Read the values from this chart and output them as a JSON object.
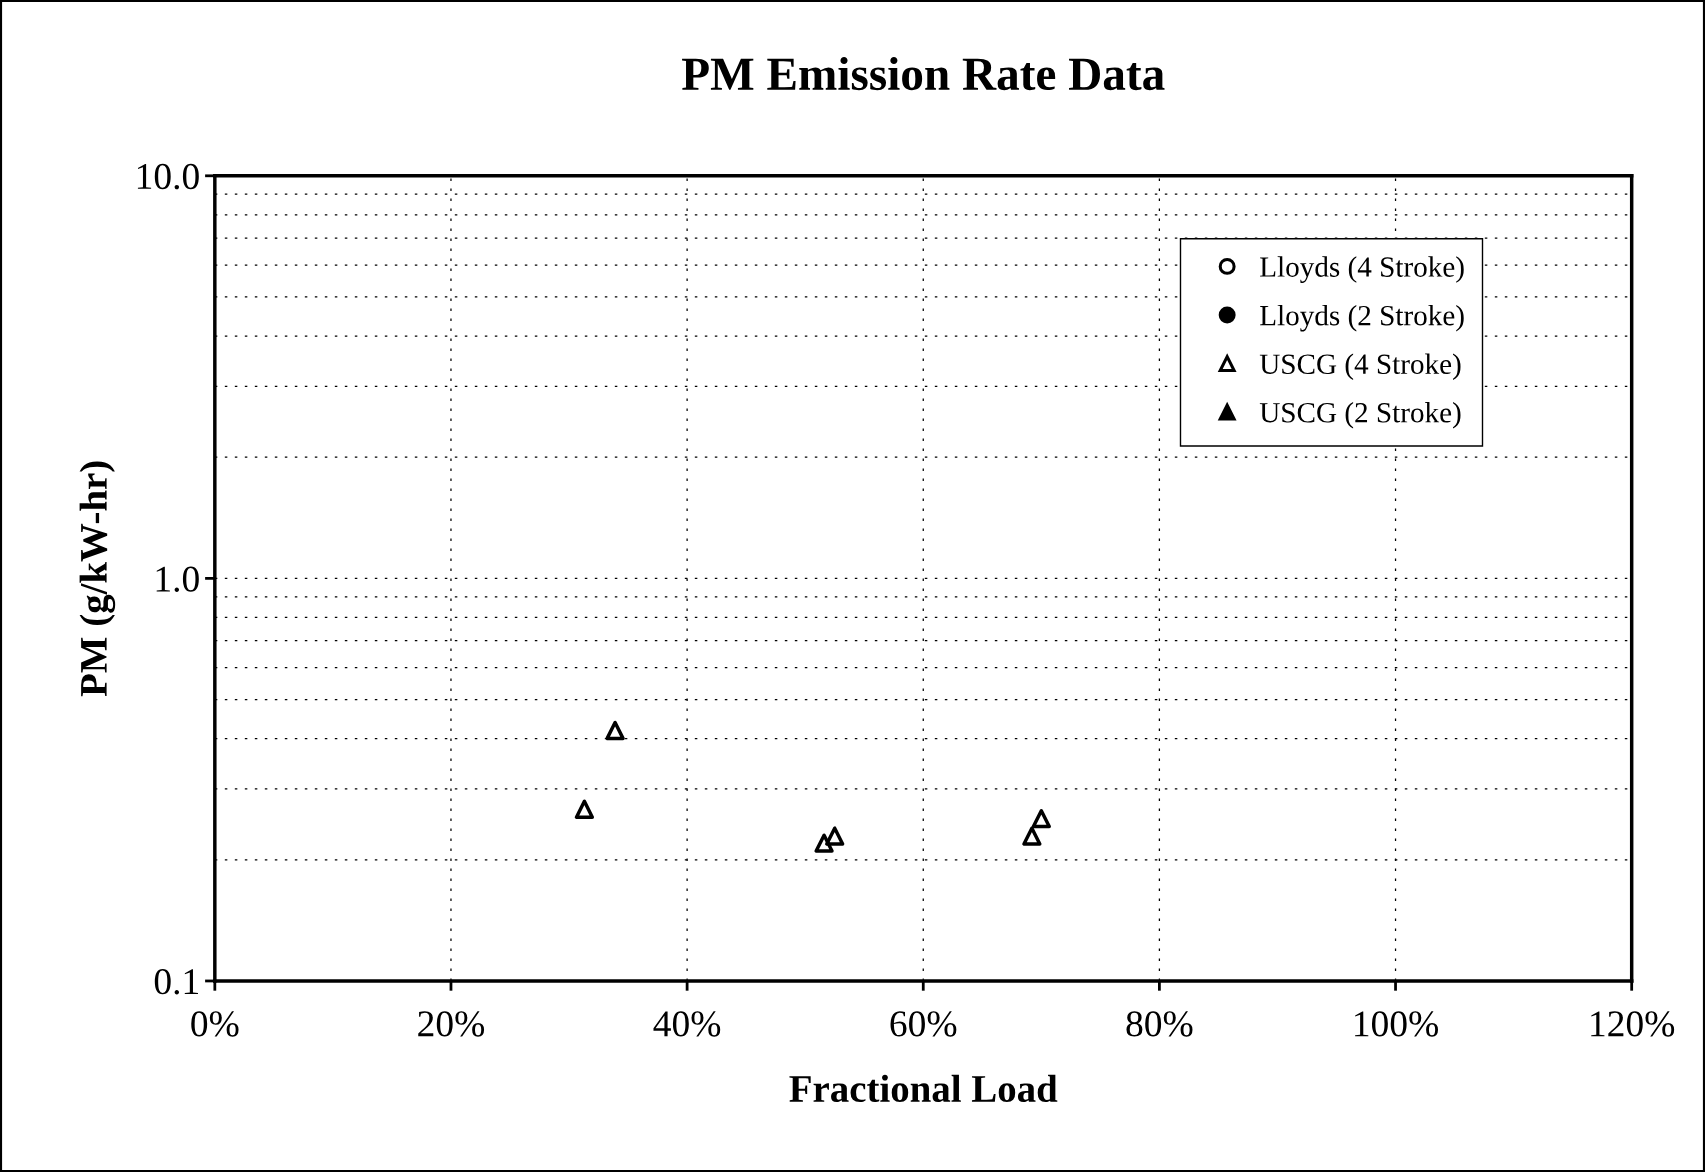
{
  "chart_data": {
    "type": "scatter",
    "title": "PM Emission Rate Data",
    "xlabel": "Fractional Load",
    "ylabel": "PM (g/kW-hr)",
    "log": "y",
    "grid": true,
    "legend": "top right",
    "xlim": [
      0,
      1.2
    ],
    "xticks": [
      {
        "value": 0,
        "label": "0%"
      },
      {
        "value": 0.2,
        "label": "20%"
      },
      {
        "value": 0.4,
        "label": "40%"
      },
      {
        "value": 0.6,
        "label": "60%"
      },
      {
        "value": 0.8,
        "label": "80%"
      },
      {
        "value": 1.0,
        "label": "100%"
      },
      {
        "value": 1.2,
        "label": "120%"
      }
    ],
    "ylim": [
      0.1,
      10
    ],
    "yticks": [
      {
        "value": 0.1,
        "label": "0.1"
      },
      {
        "value": 1,
        "label": "1.0"
      },
      {
        "value": 10,
        "label": "10.0"
      }
    ],
    "series": [
      {
        "name": "Lloyds (4 Stroke)",
        "color": "#000000",
        "marker": "circle"
      },
      {
        "name": "Lloyds (2 Stroke)",
        "color": "#000000",
        "marker": "circle"
      },
      {
        "name": "USCG (4 Stroke)",
        "color": "#000000",
        "marker": "triangle",
        "x": [
          0.313,
          0.339,
          0.516,
          0.525,
          0.692,
          0.7
        ],
        "values": [
          0.267,
          0.419,
          0.22,
          0.229,
          0.229,
          0.253
        ]
      },
      {
        "name": "USCG (2 Stroke)",
        "color": "#000000",
        "marker": "triangle"
      }
    ]
  }
}
